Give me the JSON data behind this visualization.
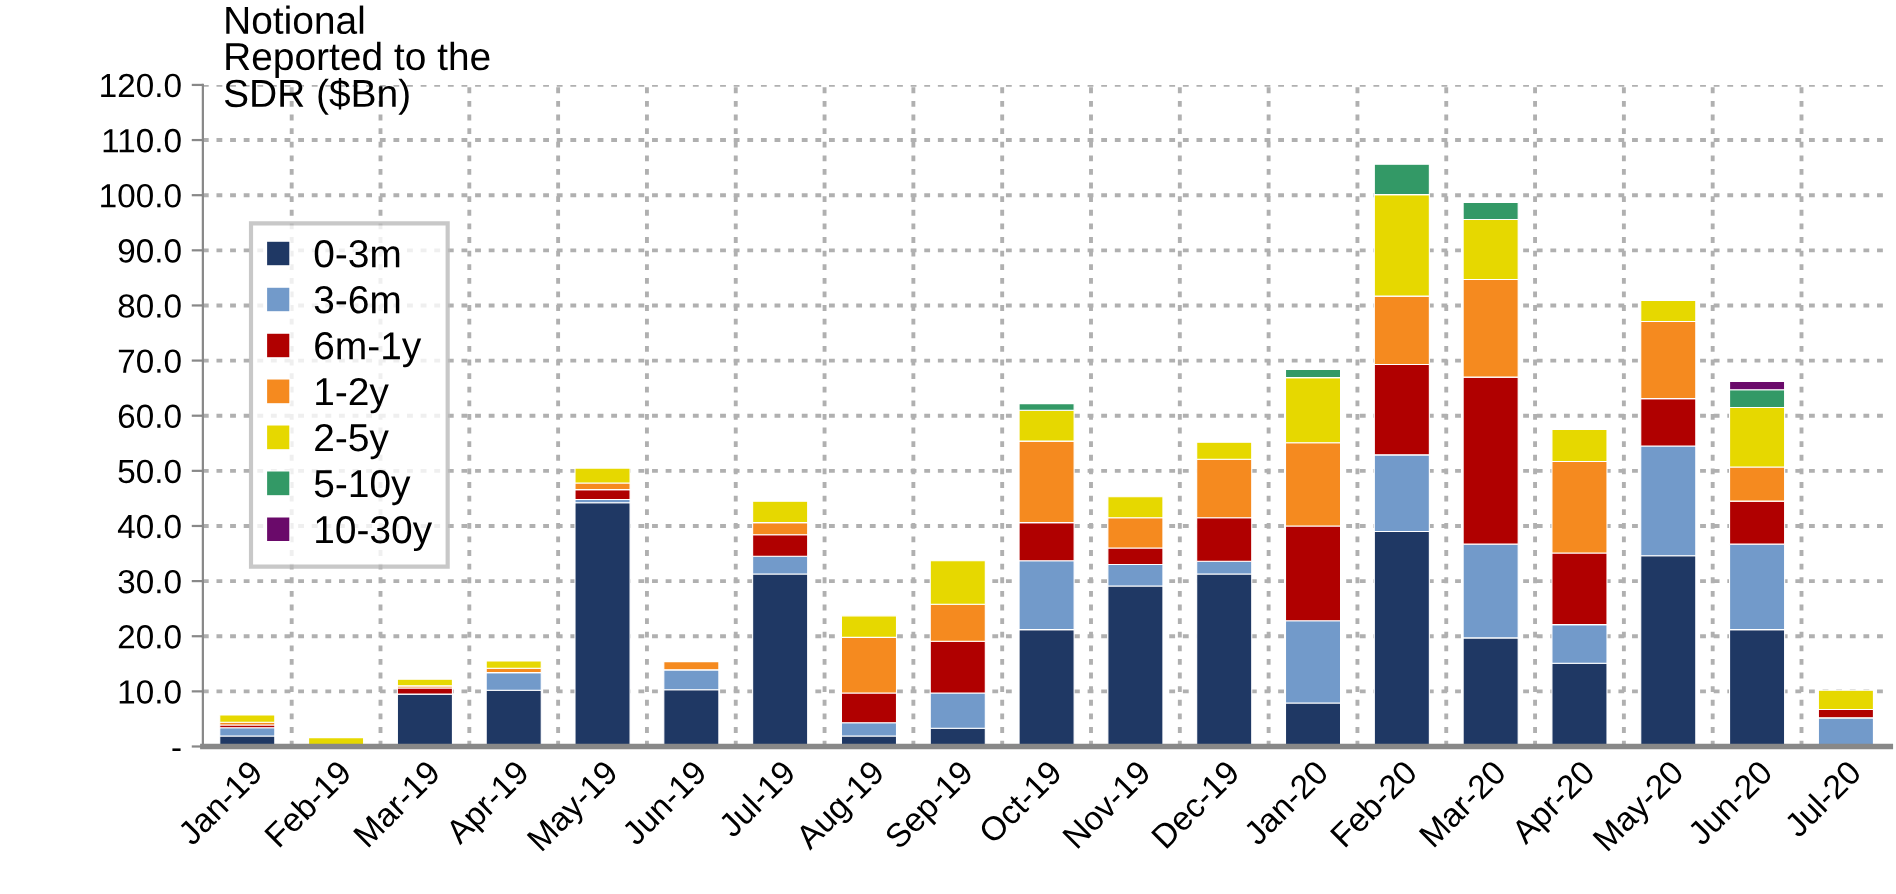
{
  "chart_data": {
    "type": "bar",
    "stacked": true,
    "title": "Notional\nReported to the\nSDR ($Bn)",
    "categories": [
      "Jan-19",
      "Feb-19",
      "Mar-19",
      "Apr-19",
      "May-19",
      "Jun-19",
      "Jul-19",
      "Aug-19",
      "Sep-19",
      "Oct-19",
      "Nov-19",
      "Dec-19",
      "Jan-20",
      "Feb-20",
      "Mar-20",
      "Apr-20",
      "May-20",
      "Jun-20",
      "Jul-20"
    ],
    "series": [
      {
        "name": "0-3m",
        "color": "#1f3864",
        "values": [
          1.9,
          null,
          9.5,
          10.2,
          44.2,
          10.3,
          31.3,
          1.9,
          3.3,
          21.2,
          29.1,
          31.3,
          7.9,
          39.0,
          19.7,
          15.1,
          34.6,
          21.2,
          0.3
        ]
      },
      {
        "name": "3-6m",
        "color": "#729aca",
        "values": [
          1.5,
          null,
          null,
          3.2,
          0.6,
          3.6,
          3.2,
          2.4,
          6.4,
          12.5,
          3.9,
          2.3,
          14.9,
          13.9,
          17.0,
          7.0,
          19.9,
          15.5,
          4.9
        ]
      },
      {
        "name": "6m-1y",
        "color": "#b00000",
        "values": [
          0.5,
          null,
          1.1,
          null,
          1.8,
          null,
          3.9,
          5.4,
          9.4,
          6.9,
          3.0,
          7.9,
          17.2,
          16.4,
          30.3,
          13.0,
          8.6,
          7.8,
          1.5
        ]
      },
      {
        "name": "1-2y",
        "color": "#f58a1f",
        "values": [
          0.5,
          null,
          0.4,
          0.8,
          1.2,
          1.5,
          2.2,
          10.1,
          6.7,
          14.8,
          5.5,
          10.6,
          15.1,
          12.4,
          17.7,
          16.6,
          14.0,
          6.2,
          null
        ]
      },
      {
        "name": "2-5y",
        "color": "#e6d800",
        "values": [
          1.3,
          1.6,
          1.2,
          1.3,
          2.7,
          null,
          3.9,
          3.9,
          7.9,
          5.6,
          3.8,
          3.1,
          11.8,
          18.4,
          10.9,
          5.8,
          3.8,
          10.8,
          3.5
        ]
      },
      {
        "name": "5-10y",
        "color": "#339966",
        "values": [
          null,
          null,
          null,
          null,
          null,
          null,
          null,
          null,
          null,
          1.2,
          null,
          null,
          1.5,
          5.5,
          3.1,
          null,
          null,
          3.2,
          null
        ]
      },
      {
        "name": "10-30y",
        "color": "#6a0a6a",
        "values": [
          null,
          null,
          null,
          null,
          null,
          null,
          null,
          null,
          null,
          null,
          null,
          null,
          null,
          null,
          null,
          null,
          null,
          1.5,
          null
        ]
      }
    ],
    "ylim": [
      0,
      120
    ],
    "yticks": [
      {
        "value": 0,
        "label": "-"
      },
      {
        "value": 10,
        "label": "10.0"
      },
      {
        "value": 20,
        "label": "20.0"
      },
      {
        "value": 30,
        "label": "30.0"
      },
      {
        "value": 40,
        "label": "40.0"
      },
      {
        "value": 50,
        "label": "50.0"
      },
      {
        "value": 60,
        "label": "60.0"
      },
      {
        "value": 70,
        "label": "70.0"
      },
      {
        "value": 80,
        "label": "80.0"
      },
      {
        "value": 90,
        "label": "90.0"
      },
      {
        "value": 100,
        "label": "100.0"
      },
      {
        "value": 110,
        "label": "110.0"
      },
      {
        "value": 120,
        "label": "120.0"
      }
    ],
    "grid": true,
    "legend": "top left"
  }
}
